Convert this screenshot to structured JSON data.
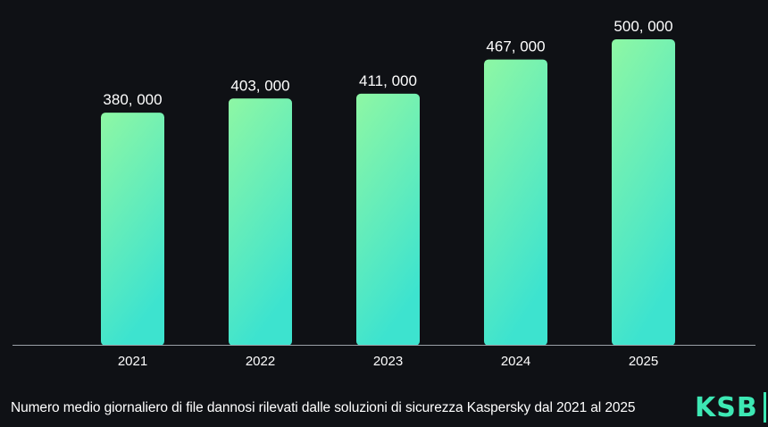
{
  "chart_data": {
    "type": "bar",
    "categories": [
      "2021",
      "2022",
      "2023",
      "2024",
      "2025"
    ],
    "values": [
      380000,
      403000,
      411000,
      467000,
      500000
    ],
    "value_labels": [
      "380, 000",
      "403, 000",
      "411, 000",
      "467, 000",
      "500, 000"
    ],
    "ylim": [
      0,
      500000
    ],
    "grid": false,
    "colors": {
      "background": "#0f1115",
      "bar_top": "#8ef7a4",
      "bar_bottom": "#3de3cf",
      "axis": "#9aa0a6",
      "text": "#ffffff"
    }
  },
  "caption": "Numero medio giornaliero di file dannosi rilevati dalle soluzioni di sicurezza Kaspersky dal 2021 al 2025",
  "logo": {
    "text": "KSB"
  }
}
